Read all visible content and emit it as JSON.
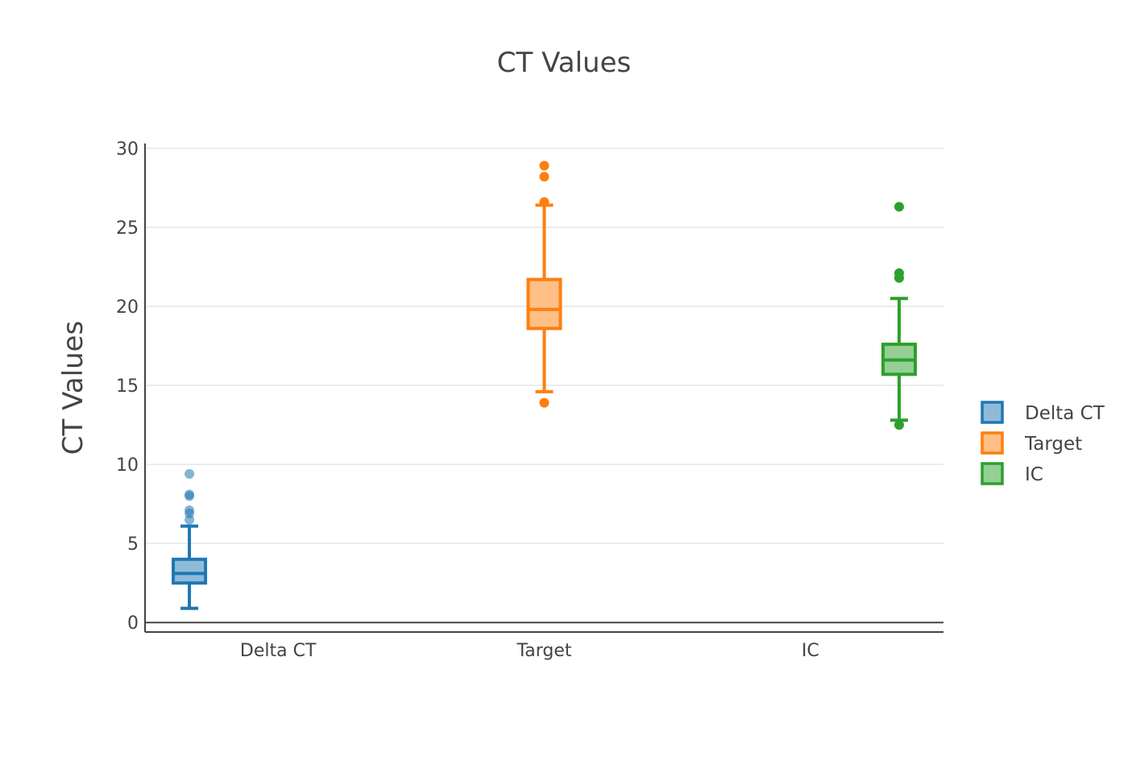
{
  "chart_data": {
    "type": "box",
    "title": "CT Values",
    "xlabel": "",
    "ylabel": "CT Values",
    "ylim": [
      -0.6,
      30.3
    ],
    "yticks": [
      0,
      5,
      10,
      15,
      20,
      25,
      30
    ],
    "grid": true,
    "legend_position": "right",
    "categories": [
      "Delta CT",
      "Target",
      "IC"
    ],
    "series": [
      {
        "name": "Delta CT",
        "color": "#1f77b4",
        "fill": "#8fbbd9",
        "lower_fence": 0.9,
        "q1": 2.5,
        "median": 3.1,
        "q3": 4.0,
        "upper_fence": 6.1,
        "outliers": [
          6.5,
          6.9,
          7.1,
          8.0,
          8.1,
          9.4
        ]
      },
      {
        "name": "Target",
        "color": "#ff7f0e",
        "fill": "#ffbf86",
        "lower_fence": 14.6,
        "q1": 18.6,
        "median": 19.8,
        "q3": 21.7,
        "upper_fence": 26.4,
        "outliers": [
          13.9,
          26.6,
          28.2,
          28.9
        ]
      },
      {
        "name": "IC",
        "color": "#2ca02c",
        "fill": "#95cf95",
        "lower_fence": 12.8,
        "q1": 15.7,
        "median": 16.6,
        "q3": 17.6,
        "upper_fence": 20.5,
        "outliers": [
          12.5,
          21.8,
          22.1,
          26.3
        ]
      }
    ]
  }
}
